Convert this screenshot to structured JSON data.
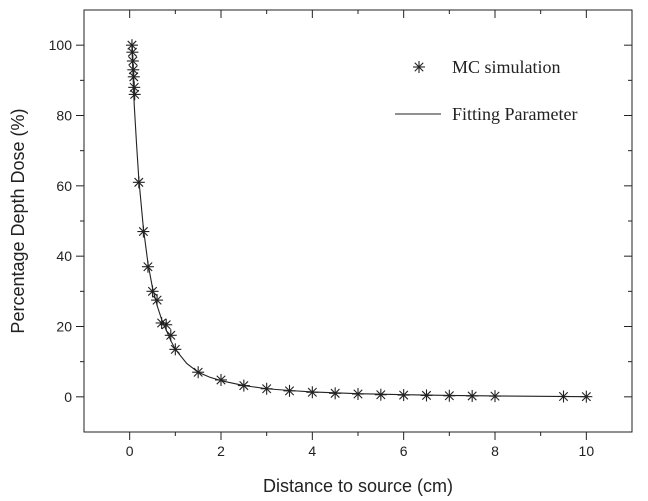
{
  "chart_data": {
    "type": "scatter",
    "title": "",
    "xlabel": "Distance to source (cm)",
    "ylabel": "Percentage Depth Dose (%)",
    "xlim": [
      -1,
      11
    ],
    "ylim": [
      -10,
      110
    ],
    "xticks": [
      0,
      2,
      4,
      6,
      8,
      10
    ],
    "yticks": [
      0,
      20,
      40,
      60,
      80,
      100
    ],
    "x_minor_step": 1,
    "y_minor_step": 10,
    "grid": false,
    "legend_position": "top-right",
    "series": [
      {
        "name": "MC simulation",
        "type": "scatter",
        "marker": "asterisk",
        "color": "#222222",
        "x": [
          0.05,
          0.06,
          0.07,
          0.08,
          0.09,
          0.1,
          0.11,
          0.2,
          0.3,
          0.4,
          0.5,
          0.6,
          0.7,
          0.8,
          0.9,
          1.0,
          1.5,
          2.0,
          2.5,
          3.0,
          3.5,
          4.0,
          4.5,
          5.0,
          5.5,
          6.0,
          6.5,
          7.0,
          7.5,
          8.0,
          9.5,
          10.0
        ],
        "y": [
          100,
          98,
          95.5,
          93,
          91,
          88,
          86,
          61,
          47,
          37,
          30,
          27.5,
          21,
          20.5,
          17.5,
          13.5,
          7,
          4.8,
          3.2,
          2.3,
          1.7,
          1.3,
          1.0,
          0.8,
          0.6,
          0.5,
          0.4,
          0.3,
          0.25,
          0.2,
          0.1,
          0.05
        ]
      },
      {
        "name": "Fitting Parameter",
        "type": "line",
        "color": "#222222",
        "x": [
          0.05,
          0.08,
          0.1,
          0.15,
          0.2,
          0.3,
          0.4,
          0.5,
          0.6,
          0.7,
          0.8,
          0.9,
          1.0,
          1.25,
          1.5,
          1.75,
          2.0,
          2.5,
          3.0,
          3.5,
          4.0,
          5.0,
          6.0,
          7.0,
          8.0,
          9.0,
          10.0
        ],
        "y": [
          100,
          89,
          83,
          72,
          62,
          48,
          38,
          31,
          26,
          22,
          19,
          16,
          13.5,
          9.5,
          7,
          5.6,
          4.6,
          3.2,
          2.3,
          1.8,
          1.4,
          0.9,
          0.6,
          0.4,
          0.25,
          0.15,
          0.05
        ]
      }
    ]
  }
}
